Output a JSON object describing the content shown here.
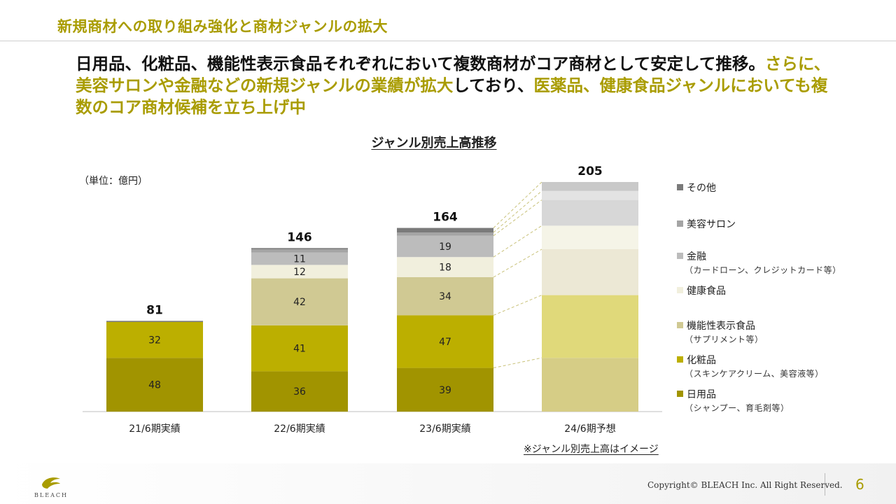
{
  "header": {
    "title": "新規商材への取り組み強化と商材ジャンルの拡大"
  },
  "headline": {
    "part1": "日用品、化粧品、機能性表示食品それぞれにおいて複数商材がコア商材として安定して推移。",
    "part2": "さらに、美容サロンや金融などの新規ジャンルの業績が拡大",
    "part3": "しており、",
    "part4": "医薬品、健康食品ジャンルにおいても複数のコア商材候補を立ち上げ中"
  },
  "chart_data": {
    "type": "bar",
    "stacked": true,
    "title": "ジャンル別売上高推移",
    "unit_label": "（単位：億円）",
    "categories": [
      "21/6期実績",
      "22/6期実績",
      "23/6期実績",
      "24/6期予想"
    ],
    "totals": [
      "81",
      "146",
      "164",
      "205"
    ],
    "total_values": [
      81,
      146,
      164,
      205
    ],
    "ylim": [
      0,
      205
    ],
    "grid": false,
    "legend_position": "right",
    "series": [
      {
        "name": "日用品",
        "sub": "（シャンプー、育毛剤等）",
        "color": "#a19400",
        "values": [
          48,
          36,
          39,
          48
        ]
      },
      {
        "name": "化粧品",
        "sub": "（スキンケアクリーム、美容液等）",
        "color": "#bcaf00",
        "values": [
          32,
          41,
          47,
          56
        ]
      },
      {
        "name": "機能性表示食品",
        "sub": "（サプリメント等）",
        "color": "#d0c993",
        "values": [
          0,
          42,
          34,
          41
        ]
      },
      {
        "name": "健康食品",
        "sub": "",
        "color": "#f1efdd",
        "values": [
          0,
          12,
          18,
          21
        ]
      },
      {
        "name": "金融",
        "sub": "（カードローン、クレジットカード等）",
        "color": "#bcbcbc",
        "values": [
          0,
          11,
          19,
          23
        ]
      },
      {
        "name": "美容サロン",
        "sub": "",
        "color": "#a4a4a4",
        "values": [
          0,
          3,
          3,
          8
        ]
      },
      {
        "name": "その他",
        "sub": "",
        "color": "#7a7a7a",
        "values": [
          1,
          1,
          4,
          8
        ]
      }
    ],
    "segment_labels": [
      [
        "48",
        "32",
        "",
        "",
        "",
        "",
        ""
      ],
      [
        "36",
        "41",
        "42",
        "12",
        "11",
        "",
        ""
      ],
      [
        "39",
        "47",
        "34",
        "18",
        "19",
        "",
        ""
      ],
      [
        "",
        "",
        "",
        "",
        "",
        "",
        ""
      ]
    ],
    "projection_series_colors": [
      "#d6cd86",
      "#e0d97a",
      "#ece8d5",
      "#f5f4e7",
      "#d7d7d7",
      "#e3e3e3",
      "#c9c9c9"
    ],
    "note": "※ジャンル別売上高はイメージ"
  },
  "legend_order": [
    6,
    5,
    4,
    3,
    2,
    1,
    0
  ],
  "footer": {
    "brand": "BLEACH",
    "copyright": "Copyright© BLEACH Inc. All Right Reserved.",
    "page": "6"
  }
}
